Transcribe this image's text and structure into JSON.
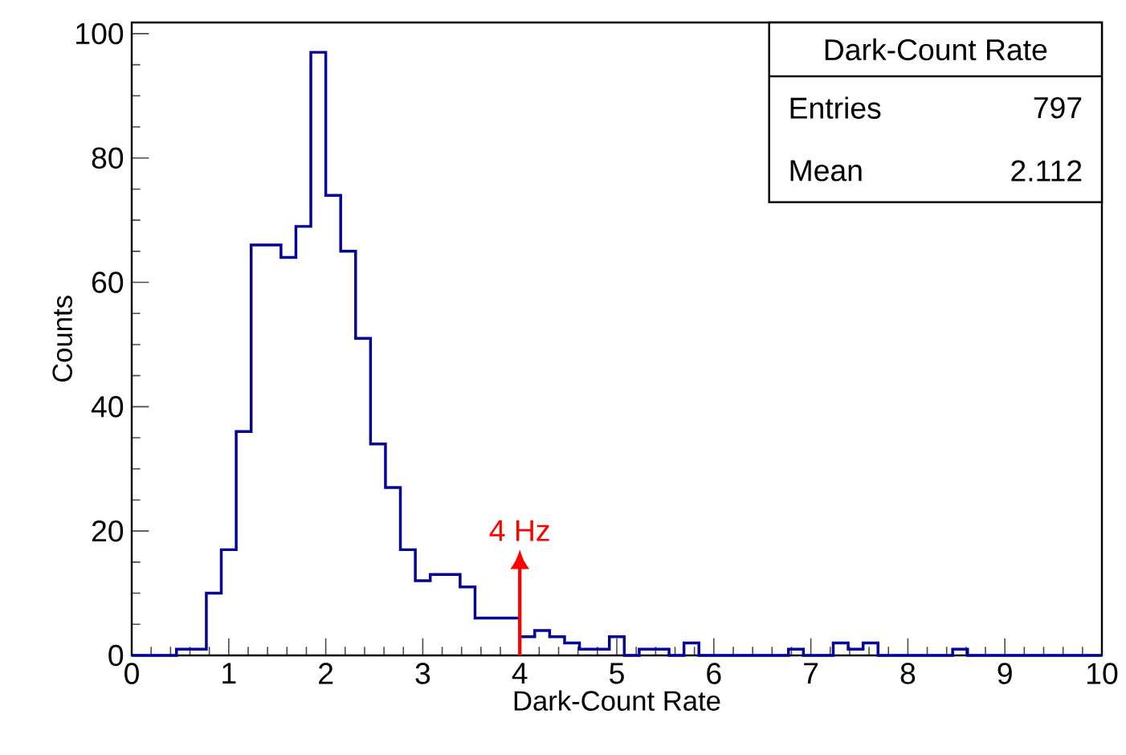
{
  "chart_data": {
    "type": "histogram",
    "xlabel": "Dark-Count Rate",
    "ylabel": "Counts",
    "bins": [
      0,
      0.1538,
      0.3077,
      0.4615,
      0.6154,
      0.7692,
      0.9231,
      1.0769,
      1.2308,
      1.3846,
      1.5385,
      1.6923,
      1.8462,
      2,
      2.1538,
      2.3077,
      2.4615,
      2.6154,
      2.7692,
      2.9231,
      3.0769,
      3.2308,
      3.3846,
      3.5385,
      3.6923,
      3.8462,
      4,
      4.1538,
      4.3077,
      4.4615,
      4.6154,
      4.7692,
      4.9231,
      5.0769,
      5.2308,
      5.3846,
      5.5385,
      5.6923,
      5.8462,
      6,
      6.1538,
      6.3077,
      6.4615,
      6.6154,
      6.7692,
      6.9231,
      7.0769,
      7.2308,
      7.3846,
      7.5385,
      7.6923,
      7.8462,
      8,
      8.1538,
      8.3077,
      8.4615,
      8.6154,
      8.7692,
      8.9231,
      9.0769,
      9.2308,
      9.3846,
      9.5385,
      9.6923,
      9.8462,
      10
    ],
    "values": [
      0,
      0,
      0,
      1,
      1,
      10,
      17,
      36,
      66,
      66,
      64,
      69,
      97,
      74,
      65,
      51,
      34,
      27,
      17,
      12,
      13,
      13,
      11,
      6,
      6,
      6,
      3,
      4,
      3,
      2,
      1,
      1,
      3,
      0,
      1,
      1,
      0,
      2,
      0,
      0,
      0,
      0,
      0,
      0,
      1,
      0,
      0,
      2,
      1,
      2,
      0,
      0,
      0,
      0,
      0,
      1,
      0,
      0,
      0,
      0,
      0,
      0,
      0,
      0,
      0
    ],
    "color": "#000099",
    "xlim": [
      0,
      10
    ],
    "ylim": [
      0,
      101.8
    ],
    "xticks": [
      0,
      1,
      2,
      3,
      4,
      5,
      6,
      7,
      8,
      9,
      10
    ],
    "yticks": [
      0,
      20,
      40,
      60,
      80,
      100
    ],
    "ref_lines": [
      {
        "axis": "x",
        "value": 4,
        "label": "4 Hz",
        "color": "#ff0000"
      }
    ],
    "annotations": [
      "Dark-Count Rate",
      "Entries",
      "797",
      "Mean",
      "2.112"
    ],
    "grid": false
  }
}
